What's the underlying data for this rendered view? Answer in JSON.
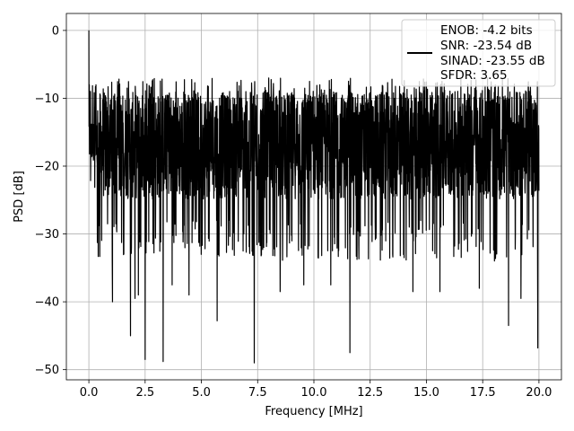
{
  "chart_data": {
    "type": "line",
    "xlabel": "Frequency [MHz]",
    "ylabel": "PSD [dB]",
    "xlim": [
      -1.0,
      21.0
    ],
    "ylim": [
      -51.5,
      2.5
    ],
    "xticks": [
      0.0,
      2.5,
      5.0,
      7.5,
      10.0,
      12.5,
      15.0,
      17.5,
      20.0
    ],
    "xtick_labels": [
      "0.0",
      "2.5",
      "5.0",
      "7.5",
      "10.0",
      "12.5",
      "15.0",
      "17.5",
      "20.0"
    ],
    "yticks": [
      0,
      -10,
      -20,
      -30,
      -40,
      -50
    ],
    "ytick_labels": [
      "0",
      "−10",
      "−20",
      "−30",
      "−40",
      "−50"
    ],
    "grid": true,
    "legend_position": "top-right",
    "legend_lines": [
      "ENOB: -4.2 bits",
      "SNR: -23.54 dB",
      "SINAD: -23.55 dB",
      "SFDR: 3.65"
    ],
    "series_color": "#000000",
    "series": [
      {
        "x_range": [
          0.0,
          20.0
        ],
        "noise_band_db": [
          -28,
          -7
        ],
        "peak": {
          "x": 0.0,
          "y": 0.0
        },
        "dips": [
          {
            "x": 1.05,
            "y": -40
          },
          {
            "x": 1.85,
            "y": -45
          },
          {
            "x": 2.05,
            "y": -39.5
          },
          {
            "x": 2.2,
            "y": -39
          },
          {
            "x": 2.5,
            "y": -48.5
          },
          {
            "x": 3.3,
            "y": -48.8
          },
          {
            "x": 3.7,
            "y": -37.5
          },
          {
            "x": 4.45,
            "y": -39
          },
          {
            "x": 5.7,
            "y": -42.8
          },
          {
            "x": 7.35,
            "y": -49
          },
          {
            "x": 8.5,
            "y": -38.5
          },
          {
            "x": 9.55,
            "y": -37.5
          },
          {
            "x": 10.75,
            "y": -37.5
          },
          {
            "x": 11.6,
            "y": -47.5
          },
          {
            "x": 14.4,
            "y": -38.5
          },
          {
            "x": 15.6,
            "y": -38.5
          },
          {
            "x": 17.35,
            "y": -38
          },
          {
            "x": 18.65,
            "y": -43.5
          },
          {
            "x": 19.2,
            "y": -39.5
          },
          {
            "x": 19.95,
            "y": -46.8
          }
        ]
      }
    ]
  }
}
